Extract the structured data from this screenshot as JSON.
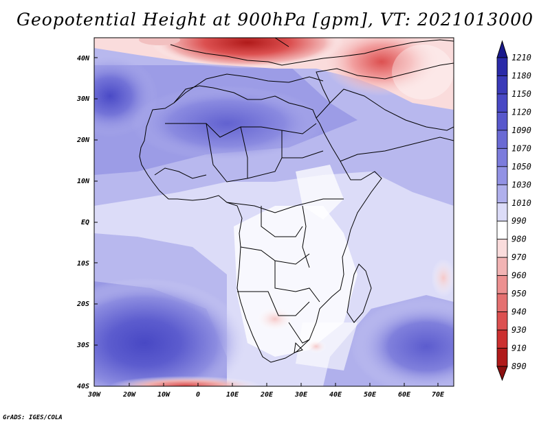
{
  "title": "Geopotential Height at 900hPa [gpm], VT: 2021013000",
  "credit": "GrADS: IGES/COLA",
  "lat_labels": [
    "40N",
    "30N",
    "20N",
    "10N",
    "EQ",
    "10S",
    "20S",
    "30S",
    "40S"
  ],
  "lon_labels": [
    "30W",
    "20W",
    "10W",
    "0",
    "10E",
    "20E",
    "30E",
    "40E",
    "50E",
    "60E",
    "70E"
  ],
  "colorbar": {
    "labels": [
      "1210",
      "1180",
      "1150",
      "1120",
      "1090",
      "1070",
      "1050",
      "1030",
      "1010",
      "990",
      "980",
      "970",
      "960",
      "950",
      "940",
      "930",
      "910",
      "890"
    ],
    "colors": [
      "#1a1a8c",
      "#2a2aa8",
      "#3a3ab8",
      "#4848c4",
      "#5858cc",
      "#6a6ad4",
      "#7c7cdc",
      "#9292e4",
      "#b0b0ec",
      "#dcdcf8",
      "#ffffff",
      "#fadcdc",
      "#f2b4b4",
      "#ec9090",
      "#e47070",
      "#dc5050",
      "#cc3030",
      "#b01a1a",
      "#8c1010"
    ]
  }
}
